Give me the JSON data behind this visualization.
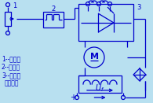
{
  "bg_color": "#b8e0f0",
  "line_color": "#0000cc",
  "fig_bg": "#b8e0f0",
  "labels": [
    "1--电位器",
    "2--触发器",
    "3--晶闸管\n    整流装置"
  ],
  "label_fontsize": 5.5
}
